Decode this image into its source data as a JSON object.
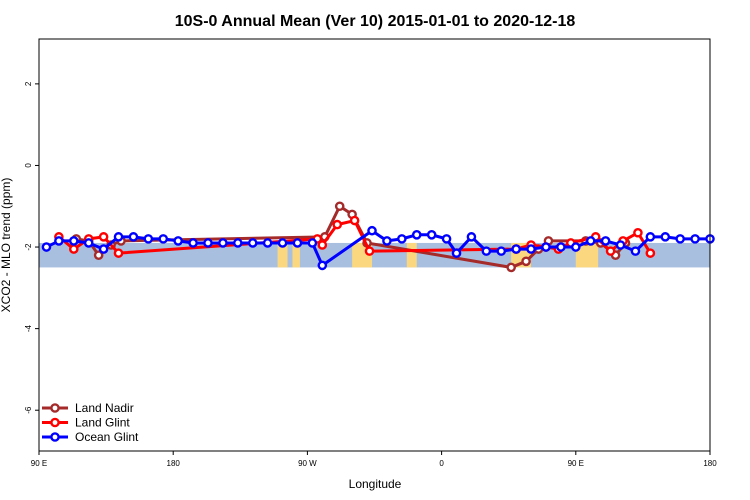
{
  "chart_data": {
    "type": "line",
    "title": "10S-0 Annual Mean (Ver 10)   2015-01-01 to 2020-12-18",
    "xlabel": "Longitude",
    "ylabel": "XCO2 - MLO trend (ppm)",
    "xlim": [
      -90,
      180
    ],
    "ylim": [
      -7,
      3.1
    ],
    "x_ticks": [
      {
        "value": -90,
        "label": "90 E"
      },
      {
        "value": -36,
        "label": "180"
      },
      {
        "value": 18,
        "label": "90 W"
      },
      {
        "value": 72,
        "label": "0"
      },
      {
        "value": 126,
        "label": "90 E"
      },
      {
        "value": 180,
        "label": "180"
      }
    ],
    "y_ticks": [
      {
        "value": 2,
        "label": "2"
      },
      {
        "value": 0,
        "label": "0"
      },
      {
        "value": -2,
        "label": "-2"
      },
      {
        "value": -4,
        "label": "-4"
      },
      {
        "value": -6,
        "label": "-6"
      }
    ],
    "background_band": {
      "y_min": -2.5,
      "y_max": -1.9,
      "ocean_color": "#a9bfdf",
      "land_color": "#fbd87f"
    },
    "land_spans": [
      [
        6,
        10
      ],
      [
        12,
        15
      ],
      [
        36,
        44
      ],
      [
        58,
        62
      ],
      [
        100,
        108
      ],
      [
        126,
        135
      ]
    ],
    "legend_position": "bottom-left",
    "series": [
      {
        "name": "Land Nadir",
        "color": "#a52a2a",
        "x": [
          -75,
          -70,
          -66,
          -61,
          -57,
          25,
          31,
          36,
          42,
          100,
          106,
          111,
          115,
          130,
          136,
          142,
          146
        ],
        "y": [
          -1.8,
          -1.85,
          -2.2,
          -1.95,
          -1.85,
          -1.75,
          -1.0,
          -1.2,
          -1.9,
          -2.5,
          -2.35,
          -2.05,
          -1.85,
          -1.85,
          -1.9,
          -2.2,
          -1.9
        ]
      },
      {
        "name": "Land Glint",
        "color": "#ff0000",
        "x": [
          -82,
          -76,
          -70,
          -64,
          -58,
          22,
          24,
          30,
          37,
          43,
          102,
          108,
          114,
          119,
          124,
          134,
          140,
          145,
          151,
          156
        ],
        "y": [
          -1.75,
          -2.05,
          -1.8,
          -1.75,
          -2.15,
          -1.8,
          -1.95,
          -1.45,
          -1.35,
          -2.1,
          -2.05,
          -1.95,
          -2.0,
          -2.05,
          -1.9,
          -1.75,
          -2.1,
          -1.85,
          -1.65,
          -2.15
        ]
      },
      {
        "name": "Ocean Glint",
        "color": "#0000ff",
        "x": [
          -87,
          -82,
          -76,
          -70,
          -64,
          -58,
          -52,
          -46,
          -40,
          -34,
          -28,
          -22,
          -16,
          -10,
          -4,
          2,
          8,
          14,
          20,
          24,
          44,
          50,
          56,
          62,
          68,
          74,
          78,
          84,
          90,
          96,
          102,
          108,
          114,
          120,
          126,
          132,
          138,
          144,
          150,
          156,
          162,
          168,
          174,
          180
        ],
        "y": [
          -2.0,
          -1.85,
          -1.85,
          -1.9,
          -2.05,
          -1.75,
          -1.75,
          -1.8,
          -1.8,
          -1.85,
          -1.9,
          -1.9,
          -1.9,
          -1.9,
          -1.9,
          -1.9,
          -1.9,
          -1.9,
          -1.9,
          -2.45,
          -1.6,
          -1.85,
          -1.8,
          -1.7,
          -1.7,
          -1.8,
          -2.15,
          -1.75,
          -2.1,
          -2.1,
          -2.05,
          -2.05,
          -2.0,
          -2.0,
          -2.0,
          -1.85,
          -1.85,
          -1.95,
          -2.1,
          -1.75,
          -1.75,
          -1.8,
          -1.8,
          -1.8
        ]
      }
    ]
  }
}
